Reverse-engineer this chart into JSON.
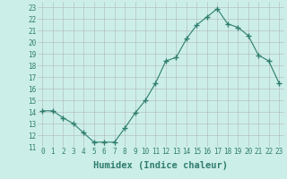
{
  "xlabel": "Humidex (Indice chaleur)",
  "x": [
    0,
    1,
    2,
    3,
    4,
    5,
    6,
    7,
    8,
    9,
    10,
    11,
    12,
    13,
    14,
    15,
    16,
    17,
    18,
    19,
    20,
    21,
    22,
    23
  ],
  "y": [
    14.1,
    14.1,
    13.5,
    13.0,
    12.2,
    11.4,
    11.4,
    11.4,
    12.6,
    13.9,
    15.0,
    16.5,
    18.4,
    18.7,
    20.3,
    21.5,
    22.2,
    22.9,
    21.6,
    21.3,
    20.6,
    18.9,
    18.4,
    16.5
  ],
  "line_color": "#2e7d6e",
  "marker": "+",
  "marker_size": 4,
  "bg_color": "#cceee8",
  "grid_color": "#b0b8b8",
  "ylim": [
    11,
    23.5
  ],
  "yticks": [
    11,
    12,
    13,
    14,
    15,
    16,
    17,
    18,
    19,
    20,
    21,
    22,
    23
  ],
  "xticks": [
    0,
    1,
    2,
    3,
    4,
    5,
    6,
    7,
    8,
    9,
    10,
    11,
    12,
    13,
    14,
    15,
    16,
    17,
    18,
    19,
    20,
    21,
    22,
    23
  ],
  "tick_label_fontsize": 5.5,
  "xlabel_fontsize": 7.5,
  "label_color": "#2e7d6e"
}
